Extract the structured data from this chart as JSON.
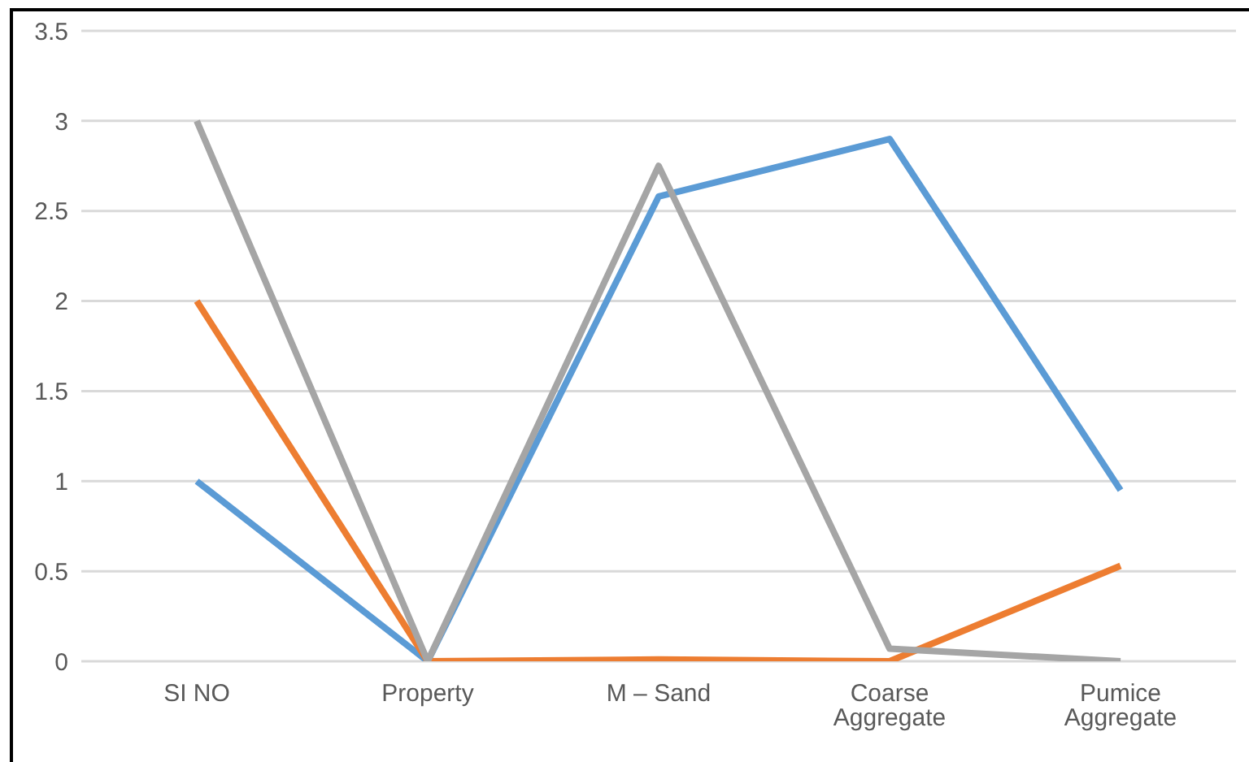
{
  "chart_data": {
    "type": "line",
    "categories": [
      "SI NO",
      "Property",
      "M – Sand",
      "Coarse Aggregate",
      "Pumice Aggregate"
    ],
    "series": [
      {
        "color": "#5b9bd5",
        "values": [
          1,
          0,
          2.58,
          2.9,
          0.95
        ]
      },
      {
        "color": "#ed7d31",
        "values": [
          2,
          0,
          0.01,
          0,
          0.53
        ]
      },
      {
        "color": "#a5a5a5",
        "values": [
          3,
          0,
          2.75,
          0.07,
          0
        ]
      }
    ],
    "ylim": [
      0,
      3.5
    ],
    "yticks": [
      0,
      0.5,
      1,
      1.5,
      2,
      2.5,
      3,
      3.5
    ],
    "grid": "y",
    "legend": false,
    "marker": "none",
    "line_style": "solid"
  }
}
